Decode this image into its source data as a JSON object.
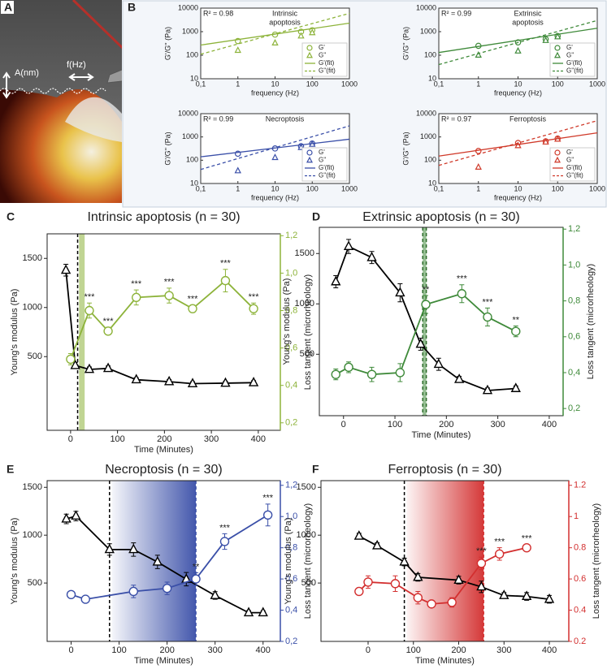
{
  "image_panel": {
    "panel": "A",
    "amplitude_label": "A(nm)",
    "frequency_label": "f(Hz)"
  },
  "chart_data": [
    {
      "type": "scatter",
      "panel": "B",
      "title": [
        "Intrinsic",
        "apoptosis"
      ],
      "stat": "R² = 0.98",
      "xlabel": "frequency (Hz)",
      "ylabel": "G'/G'' (Pa)",
      "log_x": true,
      "log_y": true,
      "xlim": [
        0.1,
        1000
      ],
      "ylim": [
        10,
        10000
      ],
      "xticks": [
        {
          "value": 0.1,
          "label": "0,1"
        },
        1,
        10,
        100,
        1000
      ],
      "yticks": [
        10,
        100,
        1000,
        10000
      ],
      "color": "#8db33a",
      "legend": "lower right",
      "series": [
        {
          "name": "G'",
          "marker": "circle",
          "x": [
            1,
            10,
            50,
            100
          ],
          "values": [
            400,
            750,
            1000,
            1150
          ]
        },
        {
          "name": "G''",
          "marker": "triangle",
          "x": [
            1,
            10,
            50,
            100
          ],
          "values": [
            160,
            330,
            650,
            900
          ]
        },
        {
          "name": "G'(fit)",
          "style": "solid",
          "x": [
            0.1,
            1000
          ],
          "values": [
            270,
            2300
          ]
        },
        {
          "name": "G''(fit)",
          "style": "dashed",
          "x": [
            0.1,
            1000
          ],
          "values": [
            110,
            6000
          ]
        }
      ]
    },
    {
      "type": "scatter",
      "title": [
        "Extrinsic",
        "apoptosis"
      ],
      "stat": "R² = 0.99",
      "xlabel": "frequency (Hz)",
      "ylabel": "G'/G'' (Pa)",
      "log_x": true,
      "log_y": true,
      "xlim": [
        0.1,
        1000
      ],
      "ylim": [
        10,
        10000
      ],
      "xticks": [
        {
          "value": 0.1,
          "label": "0,1"
        },
        1,
        10,
        100,
        1000
      ],
      "yticks": [
        10,
        100,
        1000,
        10000
      ],
      "color": "#3f8a3a",
      "legend": "lower right",
      "series": [
        {
          "name": "G'",
          "marker": "circle",
          "x": [
            1,
            10,
            50,
            100
          ],
          "values": [
            250,
            350,
            480,
            650
          ]
        },
        {
          "name": "G''",
          "marker": "triangle",
          "x": [
            1,
            10,
            50,
            100
          ],
          "values": [
            100,
            150,
            420,
            600
          ]
        },
        {
          "name": "G'(fit)",
          "style": "solid",
          "x": [
            0.1,
            1000
          ],
          "values": [
            130,
            1400
          ]
        },
        {
          "name": "G''(fit)",
          "style": "dashed",
          "x": [
            0.1,
            1000
          ],
          "values": [
            40,
            3000
          ]
        }
      ]
    },
    {
      "type": "scatter",
      "title": [
        "Necroptosis"
      ],
      "stat": "R² = 0.99",
      "xlabel": "frequency (Hz)",
      "ylabel": "G'/G'' (Pa)",
      "log_x": true,
      "log_y": true,
      "xlim": [
        0.1,
        1000
      ],
      "ylim": [
        10,
        10000
      ],
      "xticks": [
        {
          "value": 0.1,
          "label": "0,1"
        },
        1,
        10,
        100,
        1000
      ],
      "yticks": [
        10,
        100,
        1000,
        10000
      ],
      "color": "#3a4fa8",
      "legend": "lower right",
      "series": [
        {
          "name": "G'",
          "marker": "circle",
          "x": [
            1,
            10,
            50,
            100
          ],
          "values": [
            190,
            320,
            400,
            520
          ]
        },
        {
          "name": "G''",
          "marker": "triangle",
          "x": [
            1,
            10,
            50,
            100
          ],
          "values": [
            35,
            130,
            350,
            480
          ]
        },
        {
          "name": "G'(fit)",
          "style": "solid",
          "x": [
            0.1,
            1000
          ],
          "values": [
            140,
            800
          ]
        },
        {
          "name": "G''(fit)",
          "style": "dashed",
          "x": [
            0.1,
            1000
          ],
          "values": [
            40,
            3000
          ]
        }
      ]
    },
    {
      "type": "scatter",
      "title": [
        "Ferroptosis"
      ],
      "stat": "R² = 0.97",
      "xlabel": "frequency (Hz)",
      "ylabel": "G'/G'' (Pa)",
      "log_x": true,
      "log_y": true,
      "xlim": [
        0.1,
        1000
      ],
      "ylim": [
        10,
        10000
      ],
      "xticks": [
        {
          "value": 0.1,
          "label": "0,1"
        },
        1,
        10,
        100,
        1000
      ],
      "yticks": [
        10,
        100,
        1000,
        10000
      ],
      "color": "#d03a2a",
      "legend": "lower right",
      "series": [
        {
          "name": "G'",
          "marker": "circle",
          "x": [
            1,
            10,
            50,
            100
          ],
          "values": [
            250,
            550,
            650,
            850
          ]
        },
        {
          "name": "G''",
          "marker": "triangle",
          "x": [
            1,
            10,
            50,
            100
          ],
          "values": [
            50,
            420,
            600,
            800
          ]
        },
        {
          "name": "G'(fit)",
          "style": "solid",
          "x": [
            0.1,
            1000
          ],
          "values": [
            150,
            1500
          ]
        },
        {
          "name": "G''(fit)",
          "style": "dashed",
          "x": [
            0.1,
            1000
          ],
          "values": [
            60,
            5000
          ]
        }
      ]
    },
    {
      "type": "line",
      "panel": "C",
      "title": "Intrinsic apoptosis (n = 30)",
      "xlabel": "Time (Minutes)",
      "ylabel": "Young's modulus (Pa)",
      "y2label": "Loss tangent (microrheology)",
      "color": "#8db33a",
      "xlim": [
        -50,
        447
      ],
      "ylim": [
        -250,
        1750
      ],
      "y2lim": [
        0.16,
        1.21
      ],
      "xticks": [
        0,
        100,
        200,
        300,
        400
      ],
      "yticks": [
        500,
        1000,
        1500
      ],
      "y2ticks": [
        {
          "value": 0.2,
          "label": "0,2"
        },
        {
          "value": 0.4,
          "label": "0,4"
        },
        {
          "value": 0.6,
          "label": "0,6"
        },
        {
          "value": 0.8,
          "label": "0,8"
        },
        {
          "value": 1.0,
          "label": "1,0"
        },
        {
          "value": 1.2,
          "label": "1,2"
        }
      ],
      "dashed_lines": [
        {
          "x": 15,
          "color": "#000000"
        }
      ],
      "band": {
        "from": 18,
        "to": 30,
        "color": "#8db33a",
        "style": "solid"
      },
      "series": [
        {
          "marker": "triangle",
          "color": "#000000",
          "x": [
            -10,
            10,
            40,
            80,
            140,
            210,
            260,
            330,
            390
          ],
          "values": [
            1380,
            410,
            370,
            380,
            265,
            245,
            225,
            230,
            235
          ],
          "errors": [
            60,
            30,
            25,
            25,
            20,
            20,
            20,
            20,
            20
          ]
        },
        {
          "marker": "circle",
          "color": "#8db33a",
          "axis": "y2",
          "x": [
            0,
            40,
            80,
            140,
            210,
            260,
            330,
            390
          ],
          "values": [
            0.54,
            0.8,
            0.69,
            0.87,
            0.88,
            0.81,
            0.96,
            0.81
          ],
          "errors": [
            0.03,
            0.04,
            0.02,
            0.04,
            0.04,
            0.02,
            0.06,
            0.03
          ],
          "significance": [
            null,
            "***",
            "***",
            "***",
            "***",
            "***",
            "***",
            "***"
          ]
        }
      ]
    },
    {
      "type": "line",
      "panel": "D",
      "title": "Extrinsic apoptosis (n = 30)",
      "xlabel": "Time (Minutes)",
      "ylabel": "Young's modulus (Pa)",
      "y2label": "Loss tangent (microrheology)",
      "color": "#3f8a3a",
      "xlim": [
        -47,
        427
      ],
      "ylim": [
        -110,
        1760
      ],
      "y2lim": [
        0.16,
        1.21
      ],
      "xticks": [
        0,
        100,
        200,
        300,
        400
      ],
      "yticks": [
        500,
        1000,
        1500
      ],
      "y2ticks": [
        {
          "value": 0.2,
          "label": "0,2"
        },
        {
          "value": 0.4,
          "label": "0,4"
        },
        {
          "value": 0.6,
          "label": "0,6"
        },
        {
          "value": 0.8,
          "label": "0,8"
        },
        {
          "value": 1.0,
          "label": "1,0"
        },
        {
          "value": 1.2,
          "label": "1,2"
        }
      ],
      "dashed_lines": [
        {
          "x": 154,
          "color": "#2d6b2a"
        },
        {
          "x": 161,
          "color": "#2d6b2a"
        }
      ],
      "band": {
        "from": 154,
        "to": 161,
        "color": "#3f8a3a",
        "style": "solid"
      },
      "series": [
        {
          "marker": "triangle",
          "color": "#000000",
          "x": [
            -15,
            10,
            55,
            110,
            150,
            185,
            225,
            280,
            335
          ],
          "values": [
            1220,
            1570,
            1460,
            1110,
            600,
            400,
            250,
            140,
            160
          ],
          "errors": [
            60,
            70,
            60,
            90,
            60,
            60,
            30,
            25,
            25
          ]
        },
        {
          "marker": "circle",
          "color": "#3f8a3a",
          "axis": "y2",
          "x": [
            -15,
            10,
            55,
            110,
            160,
            230,
            280,
            335
          ],
          "values": [
            0.39,
            0.43,
            0.39,
            0.4,
            0.78,
            0.84,
            0.71,
            0.63
          ],
          "errors": [
            0.03,
            0.03,
            0.04,
            0.05,
            0.05,
            0.05,
            0.05,
            0.03
          ],
          "significance": [
            null,
            null,
            null,
            null,
            "**",
            "***",
            "***",
            "**"
          ]
        }
      ]
    },
    {
      "type": "line",
      "panel": "E",
      "title": "Necroptosis (n = 30)",
      "xlabel": "Time (Minutes)",
      "ylabel": "Young's modulus (Pa)",
      "y2label": "Loss tangent (microrheology)",
      "color": "#3a4fa8",
      "xlim": [
        -50,
        436
      ],
      "ylim": [
        -110,
        1570
      ],
      "y2lim": [
        0.2,
        1.23
      ],
      "xticks": [
        0,
        100,
        200,
        300,
        400
      ],
      "yticks": [
        500,
        1000,
        1500
      ],
      "y2ticks": [
        {
          "value": 0.2,
          "label": "0,2"
        },
        {
          "value": 0.4,
          "label": "0,4"
        },
        {
          "value": 0.6,
          "label": "0,6"
        },
        {
          "value": 0.8,
          "label": "0,8"
        },
        {
          "value": 1.0,
          "label": "1,0"
        },
        {
          "value": 1.2,
          "label": "1,2"
        }
      ],
      "dashed_lines": [
        {
          "x": 80,
          "color": "#000000"
        },
        {
          "x": 260,
          "color": "#3a4fa8"
        }
      ],
      "band": {
        "from": 85,
        "to": 260,
        "color": "#3a4fa8",
        "style": "gradient"
      },
      "series": [
        {
          "marker": "triangle",
          "color": "#000000",
          "x": [
            -10,
            10,
            80,
            130,
            180,
            240,
            300,
            370,
            400
          ],
          "values": [
            1170,
            1200,
            850,
            850,
            720,
            540,
            370,
            190,
            190
          ],
          "errors": [
            50,
            50,
            60,
            70,
            70,
            70,
            40,
            20,
            20
          ]
        },
        {
          "marker": "circle",
          "color": "#3a4fa8",
          "axis": "y2",
          "x": [
            0,
            30,
            130,
            200,
            260,
            320,
            410
          ],
          "values": [
            0.5,
            0.47,
            0.52,
            0.54,
            0.6,
            0.84,
            1.01
          ],
          "errors": [
            0.01,
            0.02,
            0.04,
            0.04,
            0.04,
            0.05,
            0.07
          ],
          "significance": [
            null,
            null,
            null,
            null,
            "**",
            "***",
            "***"
          ]
        }
      ]
    },
    {
      "type": "line",
      "panel": "F",
      "title": "Ferroptosis (n = 30)",
      "xlabel": "Time (Minutes)",
      "ylabel": "Young's modulus (Pa)",
      "y2label": "Loss tangent (microrheology)",
      "color": "#d32f2f",
      "xlim": [
        -104,
        443
      ],
      "ylim": [
        -110,
        1570
      ],
      "y2lim": [
        0.2,
        1.23
      ],
      "xticks": [
        0,
        100,
        200,
        300,
        400
      ],
      "yticks": [
        500,
        1000,
        1500
      ],
      "y2ticks": [
        0.2,
        0.4,
        0.6,
        0.8,
        1.0,
        1.2
      ],
      "dashed_lines": [
        {
          "x": 80,
          "color": "#000000"
        },
        {
          "x": 255,
          "color": "#d32f2f"
        }
      ],
      "band": {
        "from": 85,
        "to": 255,
        "color": "#d32f2f",
        "style": "gradient"
      },
      "series": [
        {
          "marker": "triangle",
          "color": "#000000",
          "x": [
            -20,
            20,
            80,
            110,
            200,
            250,
            300,
            350,
            400
          ],
          "values": [
            990,
            890,
            720,
            560,
            530,
            460,
            370,
            360,
            330
          ],
          "errors": [
            30,
            30,
            40,
            40,
            40,
            60,
            30,
            40,
            40
          ]
        },
        {
          "marker": "circle",
          "color": "#d32f2f",
          "axis": "y2",
          "x": [
            -20,
            0,
            60,
            110,
            140,
            185,
            250,
            290,
            350
          ],
          "values": [
            0.52,
            0.58,
            0.57,
            0.48,
            0.44,
            0.45,
            0.7,
            0.76,
            0.8
          ],
          "errors": [
            0.02,
            0.04,
            0.05,
            0.04,
            0.02,
            0.03,
            0.04,
            0.04,
            0.02
          ],
          "significance": [
            null,
            null,
            null,
            null,
            null,
            null,
            "***",
            "***",
            "***"
          ]
        }
      ]
    }
  ]
}
